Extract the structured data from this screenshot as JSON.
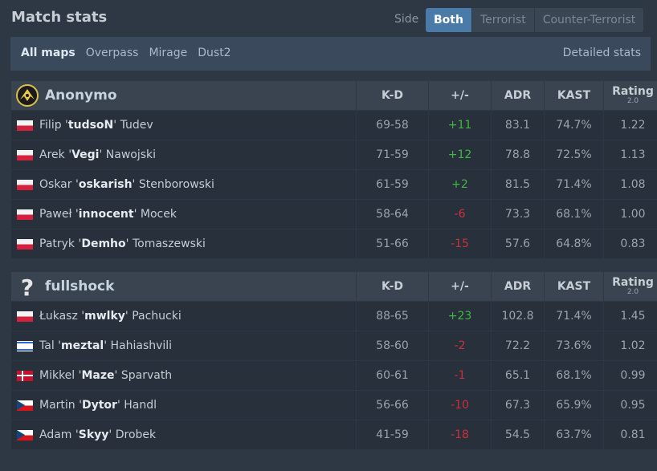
{
  "header": {
    "title": "Match stats",
    "side_label": "Side",
    "side_options": [
      "Both",
      "Terrorist",
      "Counter-Terrorist"
    ],
    "side_selected": "Both"
  },
  "maps": {
    "items": [
      "All maps",
      "Overpass",
      "Mirage",
      "Dust2"
    ],
    "selected": "All maps",
    "detailed_link": "Detailed stats"
  },
  "columns": {
    "kd": "K-D",
    "diff": "+/-",
    "adr": "ADR",
    "kast": "KAST",
    "rating": "Rating",
    "rating_version": "2.0"
  },
  "teams": [
    {
      "name": "Anonymo",
      "icon": "anonymo-logo-icon",
      "players": [
        {
          "flag": "pl",
          "first": "Filip",
          "nick": "tudsoN",
          "last": "Tudev",
          "kd": "69-58",
          "diff": "+11",
          "sign": "pos",
          "adr": "83.1",
          "kast": "74.7%",
          "rating": "1.22"
        },
        {
          "flag": "pl",
          "first": "Arek",
          "nick": "Vegi",
          "last": "Nawojski",
          "kd": "71-59",
          "diff": "+12",
          "sign": "pos",
          "adr": "78.8",
          "kast": "72.5%",
          "rating": "1.13"
        },
        {
          "flag": "pl",
          "first": "Oskar",
          "nick": "oskarish",
          "last": "Stenborowski",
          "kd": "61-59",
          "diff": "+2",
          "sign": "pos",
          "adr": "81.5",
          "kast": "71.4%",
          "rating": "1.08"
        },
        {
          "flag": "pl",
          "first": "Paweł",
          "nick": "innocent",
          "last": "Mocek",
          "kd": "58-64",
          "diff": "-6",
          "sign": "neg",
          "adr": "73.3",
          "kast": "68.1%",
          "rating": "1.00"
        },
        {
          "flag": "pl",
          "first": "Patryk",
          "nick": "Demho",
          "last": "Tomaszewski",
          "kd": "51-66",
          "diff": "-15",
          "sign": "neg",
          "adr": "57.6",
          "kast": "64.8%",
          "rating": "0.83"
        }
      ]
    },
    {
      "name": "fullshock",
      "icon": "question-mark-icon",
      "players": [
        {
          "flag": "pl",
          "first": "Łukasz",
          "nick": "mwlky",
          "last": "Pachucki",
          "kd": "88-65",
          "diff": "+23",
          "sign": "pos",
          "adr": "102.8",
          "kast": "71.4%",
          "rating": "1.45"
        },
        {
          "flag": "il",
          "first": "Tal",
          "nick": "meztal",
          "last": "Hahiashvili",
          "kd": "58-60",
          "diff": "-2",
          "sign": "neg",
          "adr": "72.2",
          "kast": "73.6%",
          "rating": "1.02"
        },
        {
          "flag": "dk",
          "first": "Mikkel",
          "nick": "Maze",
          "last": "Sparvath",
          "kd": "60-61",
          "diff": "-1",
          "sign": "neg",
          "adr": "65.1",
          "kast": "68.1%",
          "rating": "0.99"
        },
        {
          "flag": "cz",
          "first": "Martin",
          "nick": "Dytor",
          "last": "Handl",
          "kd": "56-66",
          "diff": "-10",
          "sign": "neg",
          "adr": "67.3",
          "kast": "65.9%",
          "rating": "0.95"
        },
        {
          "flag": "cz",
          "first": "Adam",
          "nick": "Skyy",
          "last": "Drobek",
          "kd": "41-59",
          "diff": "-18",
          "sign": "neg",
          "adr": "54.5",
          "kast": "63.7%",
          "rating": "0.81"
        }
      ]
    }
  ],
  "colors": {
    "background": "#2d3844",
    "accent": "#4a7aa8",
    "positive": "#40b840",
    "negative": "#c8323a"
  }
}
